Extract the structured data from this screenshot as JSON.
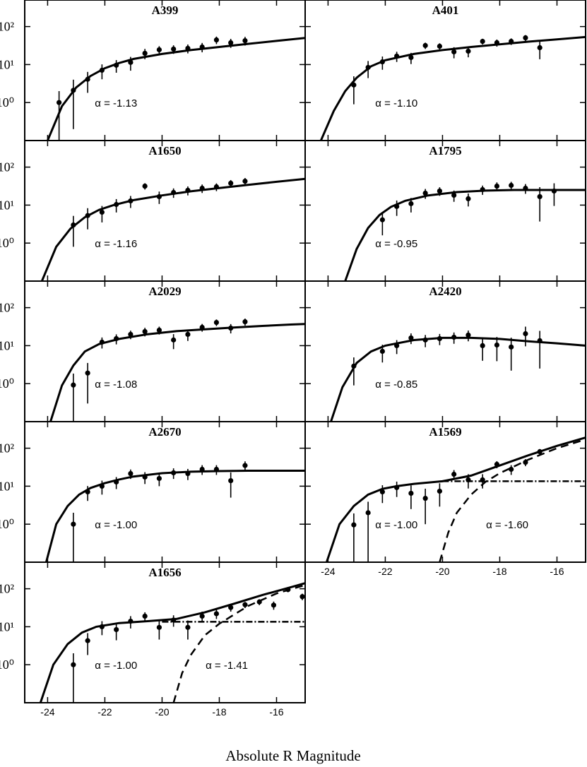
{
  "xlabel": "Absolute R Magnitude",
  "chart_data": [
    {
      "type": "scatter",
      "title": "A399",
      "xlim": [
        -24.8,
        -15
      ],
      "ylim": [
        0.1,
        500
      ],
      "log_y": true,
      "xticks": [
        -24,
        -22,
        -20,
        -18,
        -16
      ],
      "yticks": [
        {
          "value": 1,
          "label": "10⁰"
        },
        {
          "value": 10,
          "label": "10¹"
        },
        {
          "value": 100,
          "label": "10²"
        }
      ],
      "x": [
        -23.6,
        -23.1,
        -22.6,
        -22.1,
        -21.6,
        -21.1,
        -20.6,
        -20.1,
        -19.6,
        -19.1,
        -18.6,
        -18.1,
        -17.6,
        -17.1
      ],
      "values": [
        1.0,
        2.1,
        4.1,
        7.1,
        9.6,
        11.4,
        19.8,
        24.5,
        25.6,
        26.7,
        29,
        44.5,
        37.5,
        42.6
      ],
      "errors": [
        1.0,
        1.9,
        2.3,
        3,
        3.5,
        4.5,
        6,
        6,
        6.5,
        7,
        8,
        10,
        10,
        11
      ],
      "fits": [
        {
          "style": "solid",
          "x": [
            -24,
            -23.5,
            -23,
            -22.5,
            -22,
            -21.5,
            -21,
            -20,
            -19,
            -18,
            -17,
            -16,
            -15
          ],
          "values": [
            0.1,
            0.8,
            2.5,
            5,
            8,
            11,
            14,
            19,
            24,
            29,
            35,
            42,
            50
          ]
        }
      ],
      "annotations": [
        "α = -1.13"
      ]
    },
    {
      "type": "scatter",
      "title": "A401",
      "xlim": [
        -24.8,
        -15
      ],
      "ylim": [
        0.1,
        500
      ],
      "log_y": true,
      "xticks": [
        -24,
        -22,
        -20,
        -18,
        -16
      ],
      "yticks": [
        {
          "value": 1,
          "label": "10⁰"
        },
        {
          "value": 10,
          "label": "10¹"
        },
        {
          "value": 100,
          "label": "10²"
        }
      ],
      "x": [
        -23.1,
        -22.6,
        -22.1,
        -21.6,
        -21.1,
        -20.6,
        -20.1,
        -19.6,
        -19.1,
        -18.6,
        -18.1,
        -17.6,
        -17.1,
        -16.6
      ],
      "values": [
        2.9,
        8.4,
        11.8,
        16.7,
        15.3,
        31.7,
        30.3,
        21.6,
        22.5,
        40.8,
        37.6,
        40.8,
        50.6,
        27.8
      ],
      "errors": [
        2,
        4,
        4.5,
        5,
        5,
        6,
        6,
        7,
        7,
        7,
        8,
        8,
        9,
        14
      ],
      "fits": [
        {
          "style": "solid",
          "x": [
            -24.25,
            -23.8,
            -23.4,
            -23,
            -22.5,
            -22,
            -21,
            -20,
            -19,
            -18,
            -17,
            -16,
            -15
          ],
          "values": [
            0.1,
            0.6,
            2,
            4.5,
            9,
            13,
            19,
            24,
            29,
            34,
            40,
            46,
            53
          ]
        }
      ],
      "annotations": [
        "α = -1.10"
      ]
    },
    {
      "type": "scatter",
      "title": "A1650",
      "xlim": [
        -24.8,
        -15
      ],
      "ylim": [
        0.1,
        500
      ],
      "log_y": true,
      "xticks": [
        -24,
        -22,
        -20,
        -18,
        -16
      ],
      "yticks": [
        {
          "value": 1,
          "label": "10⁰"
        },
        {
          "value": 10,
          "label": "10¹"
        },
        {
          "value": 100,
          "label": "10²"
        }
      ],
      "x": [
        -23.1,
        -22.6,
        -22.1,
        -21.6,
        -21.1,
        -20.6,
        -20.1,
        -19.6,
        -19.1,
        -18.6,
        -18.1,
        -17.6,
        -17.1
      ],
      "values": [
        3.0,
        5.3,
        6.5,
        10.4,
        12.9,
        31.6,
        16.7,
        21.5,
        24.5,
        27.8,
        30.3,
        37.6,
        42.6
      ],
      "errors": [
        2.2,
        3,
        3,
        4,
        4.5,
        6,
        6,
        6,
        6.5,
        7,
        7,
        8,
        9
      ],
      "fits": [
        {
          "style": "solid",
          "x": [
            -24.2,
            -23.7,
            -23.2,
            -22.7,
            -22.2,
            -21.7,
            -21,
            -20,
            -19,
            -18,
            -17,
            -16,
            -15
          ],
          "values": [
            0.1,
            0.8,
            2.4,
            4.8,
            7.5,
            10,
            13.5,
            18,
            23,
            28,
            34,
            41,
            49
          ]
        }
      ],
      "annotations": [
        "α = -1.16"
      ]
    },
    {
      "type": "scatter",
      "title": "A1795",
      "xlim": [
        -24.8,
        -15
      ],
      "ylim": [
        0.1,
        500
      ],
      "log_y": true,
      "xticks": [
        -24,
        -22,
        -20,
        -18,
        -16
      ],
      "yticks": [
        {
          "value": 1,
          "label": "10⁰"
        },
        {
          "value": 10,
          "label": "10¹"
        },
        {
          "value": 100,
          "label": "10²"
        }
      ],
      "x": [
        -22.1,
        -21.6,
        -21.1,
        -20.6,
        -20.1,
        -19.6,
        -19.1,
        -18.6,
        -18.1,
        -17.6,
        -17.1,
        -16.6,
        -16.1
      ],
      "values": [
        4.1,
        9.2,
        10.9,
        20.6,
        23.5,
        18.2,
        14.7,
        25.6,
        31.6,
        33,
        27.8,
        16.7,
        23.5
      ],
      "errors": [
        2.5,
        4,
        4.5,
        6,
        6,
        6,
        5.5,
        7,
        8,
        8,
        8,
        13,
        14
      ],
      "fits": [
        {
          "style": "solid",
          "x": [
            -23.4,
            -23,
            -22.6,
            -22.2,
            -21.8,
            -21.3,
            -20.5,
            -19.5,
            -18.5,
            -17.5,
            -16.5,
            -15.5,
            -15
          ],
          "values": [
            0.1,
            0.7,
            2.5,
            5.5,
            9,
            13,
            18,
            22,
            24,
            25,
            25,
            25,
            25
          ]
        }
      ],
      "annotations": [
        "α = -0.95"
      ]
    },
    {
      "type": "scatter",
      "title": "A2029",
      "xlim": [
        -24.8,
        -15
      ],
      "ylim": [
        0.1,
        500
      ],
      "log_y": true,
      "xticks": [
        -24,
        -22,
        -20,
        -18,
        -16
      ],
      "yticks": [
        {
          "value": 1,
          "label": "10⁰"
        },
        {
          "value": 10,
          "label": "10¹"
        },
        {
          "value": 100,
          "label": "10²"
        }
      ],
      "x": [
        -23.1,
        -22.6,
        -22.1,
        -21.6,
        -21.1,
        -20.6,
        -20.1,
        -19.6,
        -19.1,
        -18.6,
        -18.1,
        -17.6,
        -17.1
      ],
      "values": [
        0.92,
        1.9,
        12.4,
        15.3,
        19.8,
        23.5,
        25.6,
        14.1,
        19.8,
        30.3,
        40.8,
        29,
        42.6
      ],
      "errors": [
        0.92,
        1.6,
        4,
        4.5,
        5,
        6,
        6,
        6,
        6.5,
        7,
        8,
        8,
        9
      ],
      "fits": [
        {
          "style": "solid",
          "x": [
            -23.9,
            -23.5,
            -23.1,
            -22.7,
            -22.2,
            -21.5,
            -20.5,
            -19.5,
            -18.5,
            -17.5,
            -16.5,
            -15.5,
            -15
          ],
          "values": [
            0.1,
            0.9,
            3,
            7,
            11,
            15,
            20,
            24,
            27,
            30,
            33,
            36,
            37
          ]
        }
      ],
      "annotations": [
        "α = -1.08"
      ]
    },
    {
      "type": "scatter",
      "title": "A2420",
      "xlim": [
        -24.8,
        -15
      ],
      "ylim": [
        0.1,
        500
      ],
      "log_y": true,
      "xticks": [
        -24,
        -22,
        -20,
        -18,
        -16
      ],
      "yticks": [
        {
          "value": 1,
          "label": "10⁰"
        },
        {
          "value": 10,
          "label": "10¹"
        },
        {
          "value": 100,
          "label": "10²"
        }
      ],
      "x": [
        -23.1,
        -22.1,
        -21.6,
        -21.1,
        -20.6,
        -20.1,
        -19.6,
        -19.1,
        -18.6,
        -18.1,
        -17.6,
        -17.1,
        -16.6
      ],
      "values": [
        2.9,
        7.1,
        10,
        16,
        14.1,
        15.3,
        16.7,
        19,
        10,
        10.4,
        9.2,
        20.6,
        13.5
      ],
      "errors": [
        2,
        3.5,
        4,
        5,
        5,
        5,
        5.5,
        6,
        6,
        6.5,
        7,
        11,
        11
      ],
      "fits": [
        {
          "style": "solid",
          "x": [
            -23.9,
            -23.5,
            -23,
            -22.5,
            -22,
            -21,
            -20,
            -19,
            -18,
            -17,
            -16,
            -15
          ],
          "values": [
            0.1,
            0.8,
            3.5,
            7,
            10,
            14,
            16,
            16,
            15,
            13,
            11.5,
            10
          ]
        }
      ],
      "annotations": [
        "α = -0.85"
      ]
    },
    {
      "type": "scatter",
      "title": "A2670",
      "xlim": [
        -24.8,
        -15
      ],
      "ylim": [
        0.1,
        500
      ],
      "log_y": true,
      "xticks": [
        -24,
        -22,
        -20,
        -18,
        -16
      ],
      "yticks": [
        {
          "value": 1,
          "label": "10⁰"
        },
        {
          "value": 10,
          "label": "10¹"
        },
        {
          "value": 100,
          "label": "10²"
        }
      ],
      "x": [
        -23.1,
        -22.6,
        -22.1,
        -21.6,
        -21.1,
        -20.6,
        -20.1,
        -19.6,
        -19.1,
        -18.6,
        -18.1,
        -17.6,
        -17.1
      ],
      "values": [
        1.0,
        7.1,
        10,
        12.9,
        21.5,
        17.4,
        16,
        22.5,
        21.5,
        27.8,
        27.8,
        14,
        35
      ],
      "errors": [
        1.0,
        3,
        4,
        4.5,
        6,
        6,
        6,
        7,
        7,
        8,
        8,
        9,
        10
      ],
      "fits": [
        {
          "style": "solid",
          "x": [
            -24.05,
            -23.7,
            -23.3,
            -22.9,
            -22.5,
            -22,
            -21.5,
            -21,
            -20,
            -19,
            -18,
            -17,
            -16,
            -15
          ],
          "values": [
            0.1,
            1,
            3,
            6,
            9,
            12,
            15,
            18,
            22,
            24,
            25,
            25.5,
            25.5,
            25.5
          ]
        }
      ],
      "annotations": [
        "α = -1.00"
      ]
    },
    {
      "type": "scatter",
      "title": "A1569",
      "xlim": [
        -24.8,
        -15
      ],
      "ylim": [
        0.1,
        500
      ],
      "log_y": true,
      "xticks": [
        -24,
        -22,
        -20,
        -18,
        -16
      ],
      "yticks": [
        {
          "value": 1,
          "label": "10⁰"
        },
        {
          "value": 10,
          "label": "10¹"
        },
        {
          "value": 100,
          "label": "10²"
        }
      ],
      "x": [
        -23.1,
        -22.6,
        -22.1,
        -21.6,
        -21.1,
        -20.6,
        -20.1,
        -19.6,
        -19.1,
        -18.6,
        -18.1,
        -17.6,
        -17.1,
        -16.6
      ],
      "values": [
        0.96,
        2,
        7.1,
        9.2,
        6.5,
        4.8,
        7.4,
        20.6,
        14.7,
        14.7,
        37.6,
        27.8,
        42.6,
        81
      ],
      "errors": [
        0.96,
        1.9,
        3.5,
        4,
        4,
        3.8,
        4.5,
        6,
        6,
        6,
        8,
        8,
        9,
        14
      ],
      "fits": [
        {
          "style": "solid",
          "x": [
            -24.05,
            -23.6,
            -23.1,
            -22.6,
            -22.1,
            -21.6,
            -21,
            -20,
            -19,
            -18,
            -17,
            -16,
            -15
          ],
          "values": [
            0.1,
            1,
            3,
            6,
            8.5,
            10,
            11.5,
            13.5,
            19,
            35,
            65,
            115,
            190
          ]
        },
        {
          "style": "dashdot",
          "x": [
            -20,
            -15
          ],
          "values": [
            13.5,
            13.5
          ]
        },
        {
          "style": "dashed",
          "x": [
            -20.1,
            -19.8,
            -19.5,
            -19,
            -18.5,
            -18,
            -17,
            -16,
            -15
          ],
          "values": [
            0.1,
            0.6,
            2,
            6,
            13,
            22,
            50,
            100,
            170
          ]
        }
      ],
      "annotations": [
        "α = -1.00",
        "α = -1.60"
      ]
    },
    {
      "type": "scatter",
      "title": "A1656",
      "xlim": [
        -24.8,
        -15
      ],
      "ylim": [
        0.1,
        500
      ],
      "log_y": true,
      "xticks": [
        -24,
        -22,
        -20,
        -18,
        -16
      ],
      "yticks": [
        {
          "value": 1,
          "label": "10⁰"
        },
        {
          "value": 10,
          "label": "10¹"
        },
        {
          "value": 100,
          "label": "10²"
        }
      ],
      "x": [
        -23.1,
        -22.6,
        -22.1,
        -21.6,
        -21.1,
        -20.6,
        -20.1,
        -19.6,
        -19.1,
        -18.6,
        -18.1,
        -17.6,
        -17.1,
        -16.6,
        -16.1,
        -15.6,
        -15.1
      ],
      "values": [
        1.0,
        4.3,
        10,
        8.4,
        14,
        19,
        9.6,
        15,
        9.6,
        19,
        22,
        32,
        38,
        45,
        37,
        95,
        62
      ],
      "errors": [
        1.0,
        2.5,
        4,
        4,
        5,
        5,
        5,
        5,
        5,
        6,
        6,
        7,
        7,
        8,
        9,
        14,
        12
      ],
      "fits": [
        {
          "style": "solid",
          "x": [
            -24.25,
            -23.8,
            -23.3,
            -22.8,
            -22.3,
            -21.5,
            -20.5,
            -19.5,
            -18.5,
            -17.5,
            -16.5,
            -15.5,
            -15
          ],
          "values": [
            0.1,
            1,
            3.5,
            7,
            10,
            12.5,
            14,
            16,
            24,
            40,
            68,
            110,
            140
          ]
        },
        {
          "style": "dashdot",
          "x": [
            -20,
            -15
          ],
          "values": [
            13.5,
            13.5
          ]
        },
        {
          "style": "dashed",
          "x": [
            -19.6,
            -19.3,
            -19,
            -18.5,
            -18,
            -17,
            -16,
            -15
          ],
          "values": [
            0.1,
            0.6,
            1.8,
            6,
            12,
            35,
            75,
            125
          ]
        }
      ],
      "annotations": [
        "α = -1.00",
        "α = -1.41"
      ]
    }
  ]
}
